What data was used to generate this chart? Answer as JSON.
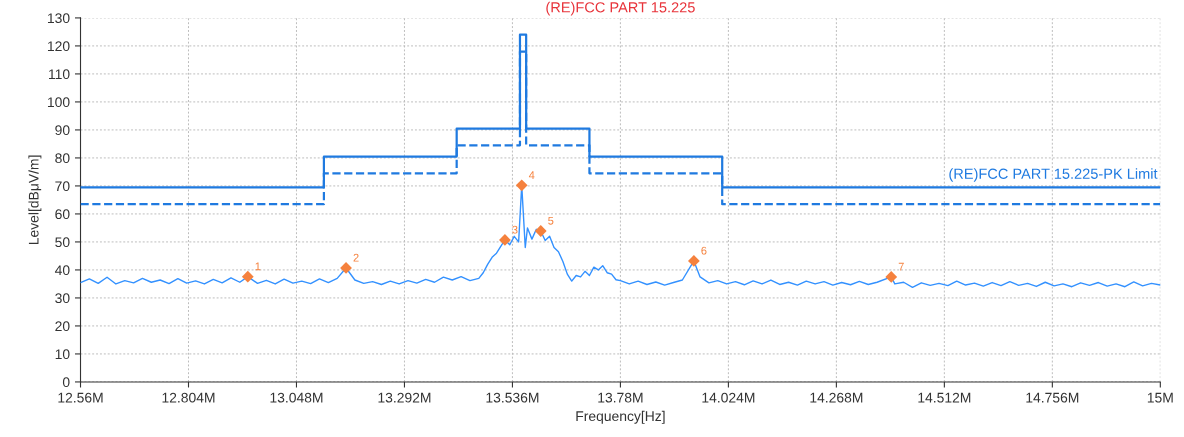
{
  "chart_data": {
    "type": "line",
    "title": "(RE)FCC PART 15.225",
    "xlabel": "Frequency[Hz]",
    "ylabel": "Level[dBμV/m]",
    "xlim": [
      12560000,
      15000000
    ],
    "xticks": [
      {
        "value": 12560000,
        "label": "12.56M"
      },
      {
        "value": 12804000,
        "label": "12.804M"
      },
      {
        "value": 13048000,
        "label": "13.048M"
      },
      {
        "value": 13292000,
        "label": "13.292M"
      },
      {
        "value": 13536000,
        "label": "13.536M"
      },
      {
        "value": 13780000,
        "label": "13.78M"
      },
      {
        "value": 14024000,
        "label": "14.024M"
      },
      {
        "value": 14268000,
        "label": "14.268M"
      },
      {
        "value": 14512000,
        "label": "14.512M"
      },
      {
        "value": 14756000,
        "label": "14.756M"
      },
      {
        "value": 15000000,
        "label": "15M"
      }
    ],
    "ylim": [
      0,
      130
    ],
    "yticks": [
      0,
      10,
      20,
      30,
      40,
      50,
      60,
      70,
      80,
      90,
      100,
      110,
      120,
      130
    ],
    "grid": true,
    "legend": false,
    "series": [
      {
        "type": "step",
        "name": "(RE)FCC PART 15.225-PK Limit",
        "color": "#1f7ae0",
        "line_style": "solid",
        "x": [
          12560000,
          13110000,
          13410000,
          13553000,
          13567000,
          13710000,
          14010000,
          15000000
        ],
        "values": [
          69.5,
          80.5,
          90.5,
          124,
          90.5,
          80.5,
          69.5,
          69.5
        ]
      },
      {
        "type": "step",
        "color": "#1f7ae0",
        "line_style": "dashed",
        "x": [
          12560000,
          13110000,
          13410000,
          13553000,
          13567000,
          13710000,
          14010000,
          15000000
        ],
        "values": [
          63.5,
          74.5,
          84.5,
          118,
          84.5,
          74.5,
          63.5,
          63.5
        ]
      },
      {
        "color": "#3391ff",
        "line_style": "solid",
        "x": [
          12560000,
          12580000,
          12600000,
          12620000,
          12640000,
          12660000,
          12680000,
          12700000,
          12720000,
          12740000,
          12760000,
          12780000,
          12800000,
          12820000,
          12840000,
          12860000,
          12880000,
          12900000,
          12920000,
          12938000,
          12960000,
          12980000,
          13000000,
          13020000,
          13040000,
          13060000,
          13080000,
          13100000,
          13120000,
          13140000,
          13160000,
          13180000,
          13200000,
          13220000,
          13240000,
          13260000,
          13280000,
          13300000,
          13320000,
          13340000,
          13360000,
          13380000,
          13400000,
          13420000,
          13440000,
          13460000,
          13470000,
          13480000,
          13490000,
          13500000,
          13510000,
          13519000,
          13530000,
          13540000,
          13550000,
          13557000,
          13565000,
          13570000,
          13580000,
          13590000,
          13600000,
          13610000,
          13620000,
          13630000,
          13640000,
          13650000,
          13660000,
          13670000,
          13680000,
          13690000,
          13700000,
          13710000,
          13720000,
          13730000,
          13740000,
          13750000,
          13760000,
          13770000,
          13780000,
          13800000,
          13820000,
          13840000,
          13860000,
          13880000,
          13900000,
          13920000,
          13946000,
          13960000,
          13980000,
          14000000,
          14020000,
          14040000,
          14060000,
          14080000,
          14100000,
          14120000,
          14140000,
          14160000,
          14180000,
          14200000,
          14220000,
          14240000,
          14260000,
          14280000,
          14300000,
          14320000,
          14340000,
          14360000,
          14392000,
          14400000,
          14420000,
          14440000,
          14460000,
          14480000,
          14500000,
          14520000,
          14540000,
          14560000,
          14580000,
          14600000,
          14620000,
          14640000,
          14660000,
          14680000,
          14700000,
          14720000,
          14740000,
          14760000,
          14780000,
          14800000,
          14820000,
          14840000,
          14860000,
          14880000,
          14900000,
          14920000,
          14940000,
          14960000,
          14980000,
          15000000
        ],
        "values": [
          35.5,
          36.8,
          35.2,
          37.4,
          35.0,
          36.2,
          35.4,
          37.0,
          35.6,
          36.4,
          35.1,
          36.9,
          35.3,
          36.1,
          35.0,
          36.6,
          35.4,
          37.2,
          35.6,
          37.6,
          35.2,
          36.3,
          35.0,
          36.7,
          35.3,
          36.0,
          35.1,
          36.8,
          35.5,
          37.0,
          40.7,
          36.4,
          35.2,
          35.8,
          34.8,
          36.0,
          35.0,
          36.2,
          35.3,
          36.6,
          35.6,
          37.4,
          36.4,
          37.6,
          36.2,
          37.0,
          39.0,
          42.0,
          44.5,
          46.0,
          48.5,
          50.7,
          49.0,
          52.0,
          50.0,
          70.2,
          48.0,
          55.0,
          51.0,
          54.5,
          53.9,
          50.5,
          52.0,
          48.0,
          46.5,
          43.0,
          38.5,
          36.0,
          38.0,
          37.5,
          39.5,
          38.0,
          41.0,
          40.0,
          41.5,
          39.0,
          38.5,
          36.5,
          36.2,
          35.0,
          36.0,
          34.8,
          35.7,
          34.6,
          35.5,
          36.4,
          43.2,
          37.5,
          35.4,
          36.2,
          35.0,
          35.8,
          34.7,
          36.1,
          35.0,
          36.4,
          34.8,
          35.6,
          34.6,
          36.0,
          35.0,
          35.8,
          34.6,
          35.5,
          34.7,
          35.9,
          34.8,
          35.6,
          37.5,
          35.0,
          35.6,
          33.8,
          35.4,
          34.5,
          35.2,
          34.4,
          36.0,
          34.6,
          35.3,
          34.2,
          35.5,
          34.4,
          35.8,
          34.5,
          35.2,
          34.1,
          35.6,
          34.3,
          35.0,
          34.0,
          35.4,
          34.5,
          35.5,
          34.2,
          35.0,
          34.0,
          35.7,
          34.3,
          35.2,
          34.6
        ]
      },
      {
        "type": "scatter",
        "color": "#f5813d",
        "marker": "diamond",
        "x": [
          12938000,
          13160000,
          13519000,
          13557000,
          13600000,
          13946000,
          14392000
        ],
        "values": [
          37.6,
          40.7,
          50.7,
          70.2,
          53.9,
          43.2,
          37.5
        ]
      }
    ],
    "annotations": [
      {
        "text": "1",
        "x": 12938000,
        "y": 37.6
      },
      {
        "text": "2",
        "x": 13160000,
        "y": 40.7
      },
      {
        "text": "3",
        "x": 13519000,
        "y": 50.7
      },
      {
        "text": "4",
        "x": 13557000,
        "y": 70.2
      },
      {
        "text": "5",
        "x": 13600000,
        "y": 53.9
      },
      {
        "text": "6",
        "x": 13946000,
        "y": 43.2
      },
      {
        "text": "7",
        "x": 14392000,
        "y": 37.5
      }
    ]
  }
}
